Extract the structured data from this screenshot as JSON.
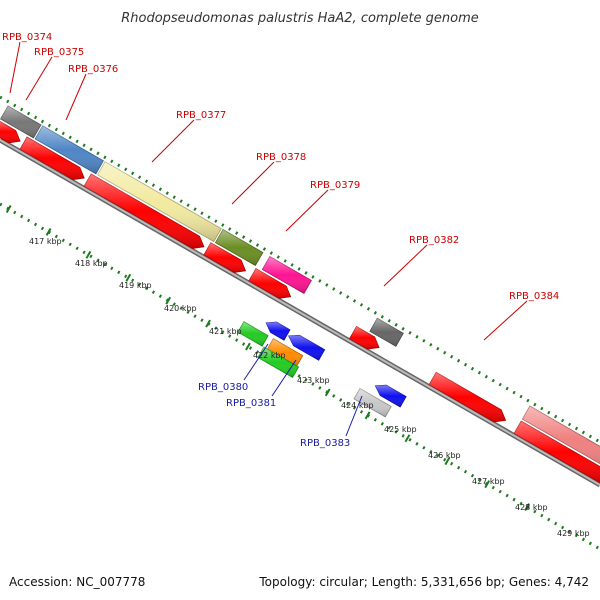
{
  "title": "Rhodopseudomonas palustris HaA2, complete genome",
  "footer": {
    "accession": "Accession: NC_007778",
    "topology": "Topology: circular; Length: 5,331,656 bp; Genes: 4,742"
  },
  "colors": {
    "forward_label": "#cc0000",
    "reverse_label": "#1a1aa6",
    "backbone": "#777777",
    "tick": "#1e7a1e",
    "cds": "#ff0000"
  },
  "forward_genes": [
    {
      "label": "RPB_0374",
      "color": "#777777"
    },
    {
      "label": "RPB_0375",
      "color": "#4f86c6"
    },
    {
      "label": "RPB_0376",
      "color": "#f2eaa0"
    },
    {
      "label": "RPB_0377",
      "color": "#f2eaa0"
    },
    {
      "label": "RPB_0378",
      "color": "#6b8e23"
    },
    {
      "label": "RPB_0379",
      "color": "#ff1493"
    },
    {
      "label": "RPB_0382",
      "color": "#666666"
    },
    {
      "label": "RPB_0384",
      "color": "#f08080"
    }
  ],
  "reverse_genes": [
    {
      "label": "RPB_0380",
      "color": "#22cc22"
    },
    {
      "label": "RPB_0381",
      "color": "#ff8c00"
    },
    {
      "label": "RPB_0383",
      "color": "#c8c8c8"
    }
  ],
  "kbp_labels": [
    "417 kbp",
    "418 kbp",
    "419 kbp",
    "420 kbp",
    "421 kbp",
    "422 kbp",
    "423 kbp",
    "424 kbp",
    "425 kbp",
    "426 kbp",
    "427 kbp",
    "428 kbp",
    "429 kbp"
  ]
}
